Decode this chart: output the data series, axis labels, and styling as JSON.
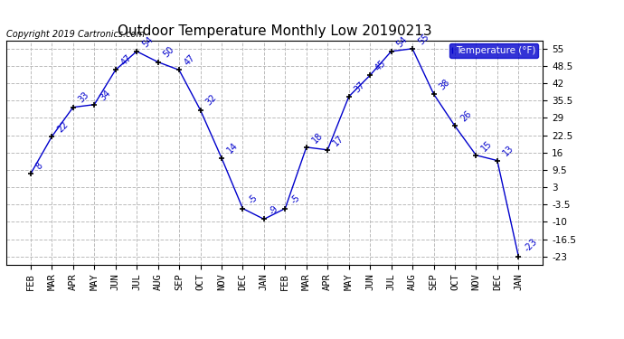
{
  "title": "Outdoor Temperature Monthly Low 20190213",
  "copyright_text": "Copyright 2019 Cartronics.com",
  "legend_label": "Temperature (°F)",
  "months": [
    "FEB",
    "MAR",
    "APR",
    "MAY",
    "JUN",
    "JUL",
    "AUG",
    "SEP",
    "OCT",
    "NOV",
    "DEC",
    "JAN",
    "FEB",
    "MAR",
    "APR",
    "MAY",
    "JUN",
    "JUL",
    "AUG",
    "SEP",
    "OCT",
    "NOV",
    "DEC",
    "JAN"
  ],
  "values": [
    8,
    22,
    33,
    34,
    47,
    54,
    50,
    47,
    32,
    14,
    -5,
    -9,
    -5,
    18,
    17,
    37,
    45,
    54,
    55,
    38,
    26,
    15,
    13,
    -23
  ],
  "line_color": "#0000cc",
  "marker_color": "#000000",
  "label_color": "#0000cc",
  "label_fontsize": 7,
  "title_fontsize": 11,
  "copyright_fontsize": 7,
  "grid_color": "#bbbbbb",
  "grid_linestyle": "--",
  "background_color": "#ffffff",
  "ylim_min": -26,
  "ylim_max": 58,
  "yticks": [
    55.0,
    48.5,
    42.0,
    35.5,
    29.0,
    22.5,
    16.0,
    9.5,
    3.0,
    -3.5,
    -10.0,
    -16.5,
    -23.0
  ],
  "legend_bg": "#0000cc",
  "legend_text_color": "#ffffff",
  "fig_width": 6.9,
  "fig_height": 3.75,
  "dpi": 100
}
